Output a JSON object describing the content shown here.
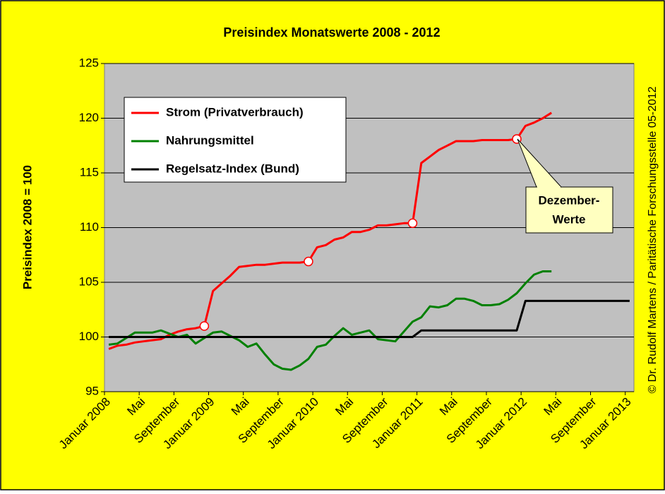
{
  "chart_data": {
    "type": "line",
    "title": "Preisindex Monatswerte 2008 - 2012",
    "y_label": "Preisindex 2008 = 100",
    "side_note": "© Dr. Rudolf Martens / Paritätische Forschungsstelle 05-2012",
    "annotation": [
      "Dezember-",
      "Werte"
    ],
    "categories": [
      "Januar 2008",
      null,
      null,
      null,
      "Mai",
      null,
      null,
      null,
      "September",
      null,
      null,
      null,
      "Januar 2009",
      null,
      null,
      null,
      "Mai",
      null,
      null,
      null,
      "September",
      null,
      null,
      null,
      "Januar 2010",
      null,
      null,
      null,
      "Mai",
      null,
      null,
      null,
      "September",
      null,
      null,
      null,
      "Januar 2011",
      null,
      null,
      null,
      "Mai",
      null,
      null,
      null,
      "September",
      null,
      null,
      null,
      "Januar 2012",
      null,
      null,
      null,
      "Mai",
      null,
      null,
      null,
      "September",
      null,
      null,
      null,
      "Januar 2013"
    ],
    "ylim": [
      95,
      125
    ],
    "yticks": [
      95,
      100,
      105,
      110,
      115,
      120,
      125
    ],
    "grid": true,
    "series": [
      {
        "name": "Strom (Privatverbrauch)",
        "color": "#ff0000",
        "marked_points": [
          11,
          23,
          35,
          47
        ],
        "values": [
          98.9,
          99.2,
          99.3,
          99.5,
          99.6,
          99.7,
          99.8,
          100.2,
          100.5,
          100.7,
          100.8,
          101.0,
          104.2,
          104.9,
          105.6,
          106.4,
          106.5,
          106.6,
          106.6,
          106.7,
          106.8,
          106.8,
          106.8,
          106.9,
          108.2,
          108.4,
          108.9,
          109.1,
          109.6,
          109.6,
          109.8,
          110.2,
          110.2,
          110.3,
          110.4,
          110.4,
          115.9,
          116.5,
          117.1,
          117.5,
          117.9,
          117.9,
          117.9,
          118.0,
          118.0,
          118.0,
          118.0,
          118.1,
          119.3,
          119.6,
          120.0,
          120.5,
          null,
          null,
          null,
          null,
          null,
          null,
          null,
          null,
          null
        ]
      },
      {
        "name": "Nahrungsmittel",
        "color": "#008000",
        "values": [
          99.3,
          99.4,
          99.9,
          100.4,
          100.4,
          100.4,
          100.6,
          100.3,
          100.0,
          100.2,
          99.4,
          99.9,
          100.4,
          100.5,
          100.1,
          99.7,
          99.1,
          99.4,
          98.4,
          97.5,
          97.1,
          97.0,
          97.4,
          98.0,
          99.1,
          99.3,
          100.1,
          100.8,
          100.2,
          100.4,
          100.6,
          99.8,
          99.7,
          99.6,
          100.5,
          101.4,
          101.8,
          102.8,
          102.7,
          102.9,
          103.5,
          103.5,
          103.3,
          102.9,
          102.9,
          103.0,
          103.4,
          104.0,
          104.9,
          105.7,
          106.0,
          106.0,
          null,
          null,
          null,
          null,
          null,
          null,
          null,
          null,
          null
        ]
      },
      {
        "name": "Regelsatz-Index (Bund)",
        "color": "#000000",
        "values": [
          100,
          100,
          100,
          100,
          100,
          100,
          100,
          100,
          100,
          100,
          100,
          100,
          100,
          100,
          100,
          100,
          100,
          100,
          100,
          100,
          100,
          100,
          100,
          100,
          100,
          100,
          100,
          100,
          100,
          100,
          100,
          100,
          100,
          100,
          100,
          100,
          100.6,
          100.6,
          100.6,
          100.6,
          100.6,
          100.6,
          100.6,
          100.6,
          100.6,
          100.6,
          100.6,
          100.6,
          103.3,
          103.3,
          103.3,
          103.3,
          103.3,
          103.3,
          103.3,
          103.3,
          103.3,
          103.3,
          103.3,
          103.3,
          103.3
        ]
      }
    ]
  }
}
